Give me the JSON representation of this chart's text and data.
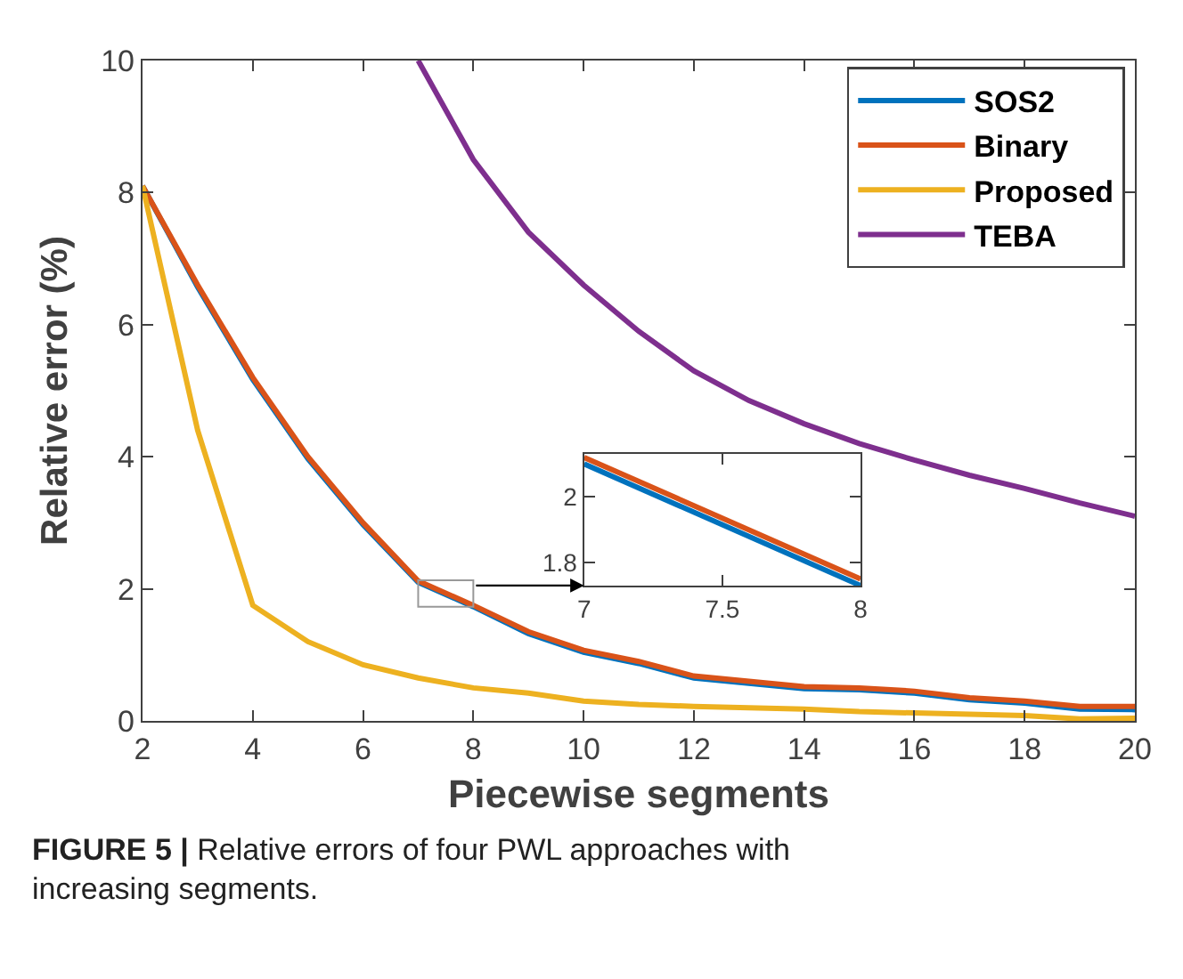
{
  "chart_data": [
    {
      "type": "line",
      "xlabel": "Piecewise segments",
      "ylabel": "Relative error (%)",
      "x": [
        2,
        3,
        4,
        5,
        6,
        7,
        8,
        9,
        10,
        11,
        12,
        13,
        14,
        15,
        16,
        17,
        18,
        19,
        20
      ],
      "xlim": [
        2,
        20
      ],
      "xticks": [
        2,
        4,
        6,
        8,
        10,
        12,
        14,
        16,
        18,
        20
      ],
      "ylim": [
        0,
        10
      ],
      "yticks": [
        0,
        2,
        4,
        6,
        8,
        10
      ],
      "legend": "top right",
      "line_style": "solid",
      "annotations": [
        "FIGURE 5 | Relative errors of four PWL approaches with increasing segments."
      ],
      "series": [
        {
          "name": "SOS2",
          "color": "#0072bd",
          "values": [
            8.1,
            6.57,
            5.17,
            3.97,
            2.97,
            2.1,
            1.73,
            1.32,
            1.04,
            0.87,
            0.65,
            0.57,
            0.49,
            0.47,
            0.42,
            0.32,
            0.27,
            0.18,
            0.17
          ]
        },
        {
          "name": "Binary",
          "color": "#d95319",
          "values": [
            8.1,
            6.6,
            5.2,
            4.0,
            3.0,
            2.12,
            1.75,
            1.35,
            1.07,
            0.9,
            0.68,
            0.6,
            0.52,
            0.5,
            0.45,
            0.35,
            0.3,
            0.22,
            0.22
          ]
        },
        {
          "name": "Proposed",
          "color": "#edb120",
          "values": [
            8.1,
            4.4,
            1.75,
            1.2,
            0.85,
            0.65,
            0.5,
            0.42,
            0.3,
            0.25,
            0.22,
            0.2,
            0.18,
            0.14,
            0.12,
            0.1,
            0.08,
            0.03,
            0.04
          ]
        },
        {
          "name": "TEBA",
          "color": "#7e2f8e",
          "x": [
            7,
            8,
            9,
            10,
            11,
            12,
            13,
            14,
            15,
            16,
            17,
            18,
            19,
            20
          ],
          "values": [
            10,
            8.5,
            7.4,
            6.6,
            5.9,
            5.3,
            4.85,
            4.5,
            4.2,
            3.95,
            3.72,
            3.52,
            3.3,
            3.1
          ]
        }
      ]
    },
    {
      "type": "line",
      "x": [
        7,
        8
      ],
      "xlim": [
        7,
        8
      ],
      "xticks": [
        7,
        7.5,
        8
      ],
      "ylim": [
        1.73,
        2.13
      ],
      "yticks": [
        1.8,
        2
      ],
      "legend": false,
      "line_style": "solid",
      "series": [
        {
          "color": "#0072bd",
          "values": [
            2.1,
            1.73
          ]
        },
        {
          "color": "#d95319",
          "values": [
            2.12,
            1.75
          ]
        }
      ]
    }
  ]
}
